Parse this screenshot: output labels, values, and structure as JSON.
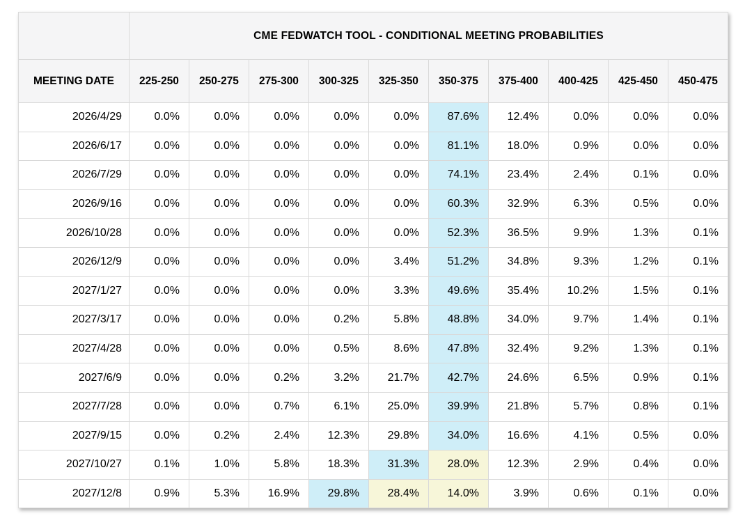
{
  "table": {
    "title": "CME FEDWATCH TOOL - CONDITIONAL MEETING PROBABILITIES",
    "date_header": "MEETING DATE",
    "corner_label": "",
    "colors": {
      "highlight_blue": "#cfeef8",
      "highlight_yellow": "#f7f6d9",
      "header_bg": "#f5f5f6",
      "grid": "#d9d9d9",
      "text": "#000000",
      "row_bg": "#ffffff"
    }
  },
  "chart_data": {
    "type": "table",
    "title": "CME FEDWATCH TOOL - CONDITIONAL MEETING PROBABILITIES",
    "row_label": "MEETING DATE",
    "categories": [
      "225-250",
      "250-275",
      "275-300",
      "300-325",
      "325-350",
      "350-375",
      "375-400",
      "400-425",
      "425-450",
      "450-475"
    ],
    "value_unit": "%",
    "rows": [
      {
        "date": "2026/4/29",
        "values": [
          0.0,
          0.0,
          0.0,
          0.0,
          0.0,
          87.6,
          12.4,
          0.0,
          0.0,
          0.0
        ],
        "highlights": [
          "",
          "",
          "",
          "",
          "",
          "blue",
          "",
          "",
          "",
          ""
        ]
      },
      {
        "date": "2026/6/17",
        "values": [
          0.0,
          0.0,
          0.0,
          0.0,
          0.0,
          81.1,
          18.0,
          0.9,
          0.0,
          0.0
        ],
        "highlights": [
          "",
          "",
          "",
          "",
          "",
          "blue",
          "",
          "",
          "",
          ""
        ]
      },
      {
        "date": "2026/7/29",
        "values": [
          0.0,
          0.0,
          0.0,
          0.0,
          0.0,
          74.1,
          23.4,
          2.4,
          0.1,
          0.0
        ],
        "highlights": [
          "",
          "",
          "",
          "",
          "",
          "blue",
          "",
          "",
          "",
          ""
        ]
      },
      {
        "date": "2026/9/16",
        "values": [
          0.0,
          0.0,
          0.0,
          0.0,
          0.0,
          60.3,
          32.9,
          6.3,
          0.5,
          0.0
        ],
        "highlights": [
          "",
          "",
          "",
          "",
          "",
          "blue",
          "",
          "",
          "",
          ""
        ]
      },
      {
        "date": "2026/10/28",
        "values": [
          0.0,
          0.0,
          0.0,
          0.0,
          0.0,
          52.3,
          36.5,
          9.9,
          1.3,
          0.1
        ],
        "highlights": [
          "",
          "",
          "",
          "",
          "",
          "blue",
          "",
          "",
          "",
          ""
        ]
      },
      {
        "date": "2026/12/9",
        "values": [
          0.0,
          0.0,
          0.0,
          0.0,
          3.4,
          51.2,
          34.8,
          9.3,
          1.2,
          0.1
        ],
        "highlights": [
          "",
          "",
          "",
          "",
          "",
          "blue",
          "",
          "",
          "",
          ""
        ]
      },
      {
        "date": "2027/1/27",
        "values": [
          0.0,
          0.0,
          0.0,
          0.0,
          3.3,
          49.6,
          35.4,
          10.2,
          1.5,
          0.1
        ],
        "highlights": [
          "",
          "",
          "",
          "",
          "",
          "blue",
          "",
          "",
          "",
          ""
        ]
      },
      {
        "date": "2027/3/17",
        "values": [
          0.0,
          0.0,
          0.0,
          0.2,
          5.8,
          48.8,
          34.0,
          9.7,
          1.4,
          0.1
        ],
        "highlights": [
          "",
          "",
          "",
          "",
          "",
          "blue",
          "",
          "",
          "",
          ""
        ]
      },
      {
        "date": "2027/4/28",
        "values": [
          0.0,
          0.0,
          0.0,
          0.5,
          8.6,
          47.8,
          32.4,
          9.2,
          1.3,
          0.1
        ],
        "highlights": [
          "",
          "",
          "",
          "",
          "",
          "blue",
          "",
          "",
          "",
          ""
        ]
      },
      {
        "date": "2027/6/9",
        "values": [
          0.0,
          0.0,
          0.2,
          3.2,
          21.7,
          42.7,
          24.6,
          6.5,
          0.9,
          0.1
        ],
        "highlights": [
          "",
          "",
          "",
          "",
          "",
          "blue",
          "",
          "",
          "",
          ""
        ]
      },
      {
        "date": "2027/7/28",
        "values": [
          0.0,
          0.0,
          0.7,
          6.1,
          25.0,
          39.9,
          21.8,
          5.7,
          0.8,
          0.1
        ],
        "highlights": [
          "",
          "",
          "",
          "",
          "",
          "blue",
          "",
          "",
          "",
          ""
        ]
      },
      {
        "date": "2027/9/15",
        "values": [
          0.0,
          0.2,
          2.4,
          12.3,
          29.8,
          34.0,
          16.6,
          4.1,
          0.5,
          0.0
        ],
        "highlights": [
          "",
          "",
          "",
          "",
          "",
          "blue",
          "",
          "",
          "",
          ""
        ]
      },
      {
        "date": "2027/10/27",
        "values": [
          0.1,
          1.0,
          5.8,
          18.3,
          31.3,
          28.0,
          12.3,
          2.9,
          0.4,
          0.0
        ],
        "highlights": [
          "",
          "",
          "",
          "",
          "blue",
          "yellow",
          "",
          "",
          "",
          ""
        ]
      },
      {
        "date": "2027/12/8",
        "values": [
          0.9,
          5.3,
          16.9,
          29.8,
          28.4,
          14.0,
          3.9,
          0.6,
          0.1,
          0.0
        ],
        "highlights": [
          "",
          "",
          "",
          "blue",
          "yellow",
          "yellow",
          "",
          "",
          "",
          ""
        ]
      }
    ]
  }
}
